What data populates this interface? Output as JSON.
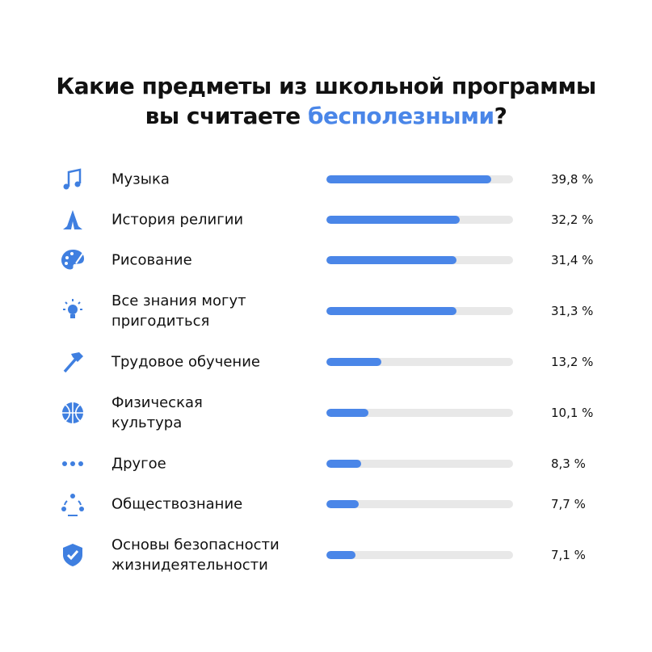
{
  "chart_data": {
    "type": "bar",
    "title": [
      "Какие предметы из школьной программы",
      "вы считаете"
    ],
    "title_highlight": "бесполезными",
    "title_end": "?",
    "categories": [
      "Музыка",
      "История религии",
      "Рисование",
      "Все знания могут\nпригодиться",
      "Трудовое обучение",
      "Физическая\nкультура",
      "Другое",
      "Обществознание",
      "Основы безопасности\nжизнидеятельности"
    ],
    "values": [
      39.8,
      32.2,
      31.4,
      31.3,
      13.2,
      10.1,
      8.3,
      7.7,
      7.1
    ],
    "value_labels": [
      "39,8 %",
      "32,2 %",
      "31,4 %",
      "31,3 %",
      "13,2 %",
      "10,1 %",
      "8,3 %",
      "7,7 %",
      "7,1 %"
    ],
    "xlim": [
      0,
      45
    ],
    "color": "#4a86e8",
    "track_color": "#e8e8e8"
  }
}
